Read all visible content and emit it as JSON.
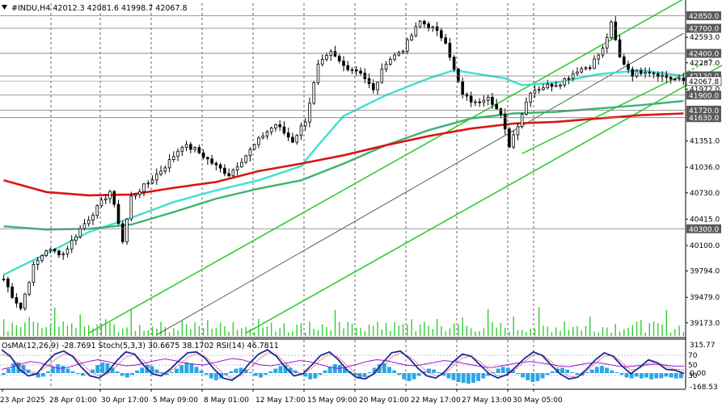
{
  "header": {
    "symbol_line": "#INDU,H4  42012.3 42081.6 41998.7 42067.8",
    "indicators_line": "OsMA(12,26,9) -28.7691  Stoch(5,3,3) 30.6675 38.1702  RSI(14) 46.7811"
  },
  "colors": {
    "background": "#ffffff",
    "grid": "#000000",
    "candles": "#000000",
    "volume": "#32cd32",
    "ema_fast": "#40e0d0",
    "ema_mid": "#3cb371",
    "ema_slow": "#dc1414",
    "channel": "#32cd32",
    "level_box": "#5a5a5a",
    "osma": "#2aa7e6",
    "stoch": "#1a2a9c",
    "rsi": "#9400d3"
  },
  "chart_data": {
    "type": "candlestick",
    "timeframe": "H4",
    "symbol": "#INDU",
    "last_price": "42067.8",
    "ylim": [
      39017,
      43000
    ],
    "y_ticks": [
      "42593.0",
      "42287.0",
      "41972.0",
      "41351.0",
      "41036.0",
      "40730.0",
      "40415.0",
      "40100.0",
      "39794.0",
      "39479.0",
      "39173.0"
    ],
    "x_labels": [
      "23 Apr 2025",
      "28 Apr 01:00",
      "30 Apr 17:00",
      "5 May 09:00",
      "8 May 01:00",
      "12 May 17:00",
      "15 May 09:00",
      "20 May 01:00",
      "22 May 17:00",
      "27 May 13:00",
      "30 May 05:00"
    ],
    "levels": [
      "42850.0",
      "42700.0",
      "42400.0",
      "42130.0",
      "41900.0",
      "41720.0",
      "41630.0",
      "40300.0"
    ],
    "last_price_label": "42067.8",
    "anchors": [
      {
        "i": 0,
        "c": 39700
      },
      {
        "i": 2,
        "c": 39500
      },
      {
        "i": 4,
        "c": 39350
      },
      {
        "i": 7,
        "c": 39850
      },
      {
        "i": 10,
        "c": 40050
      },
      {
        "i": 14,
        "c": 40000
      },
      {
        "i": 18,
        "c": 40300
      },
      {
        "i": 22,
        "c": 40550
      },
      {
        "i": 25,
        "c": 40750
      },
      {
        "i": 27,
        "c": 40380
      },
      {
        "i": 28,
        "c": 40150
      },
      {
        "i": 30,
        "c": 40680
      },
      {
        "i": 34,
        "c": 40850
      },
      {
        "i": 38,
        "c": 41050
      },
      {
        "i": 42,
        "c": 41300
      },
      {
        "i": 45,
        "c": 41250
      },
      {
        "i": 50,
        "c": 41050
      },
      {
        "i": 53,
        "c": 40950
      },
      {
        "i": 57,
        "c": 41180
      },
      {
        "i": 61,
        "c": 41420
      },
      {
        "i": 64,
        "c": 41550
      },
      {
        "i": 68,
        "c": 41350
      },
      {
        "i": 71,
        "c": 41600
      },
      {
        "i": 74,
        "c": 42250
      },
      {
        "i": 77,
        "c": 42400
      },
      {
        "i": 80,
        "c": 42250
      },
      {
        "i": 84,
        "c": 42180
      },
      {
        "i": 87,
        "c": 41950
      },
      {
        "i": 90,
        "c": 42300
      },
      {
        "i": 94,
        "c": 42450
      },
      {
        "i": 98,
        "c": 42780
      },
      {
        "i": 101,
        "c": 42700
      },
      {
        "i": 104,
        "c": 42550
      },
      {
        "i": 106,
        "c": 42200
      },
      {
        "i": 108,
        "c": 41900
      },
      {
        "i": 111,
        "c": 41800
      },
      {
        "i": 114,
        "c": 41900
      },
      {
        "i": 117,
        "c": 41650
      },
      {
        "i": 119,
        "c": 41300
      },
      {
        "i": 121,
        "c": 41550
      },
      {
        "i": 124,
        "c": 41950
      },
      {
        "i": 127,
        "c": 42000
      },
      {
        "i": 131,
        "c": 42050
      },
      {
        "i": 135,
        "c": 42200
      },
      {
        "i": 138,
        "c": 42250
      },
      {
        "i": 141,
        "c": 42450
      },
      {
        "i": 143,
        "c": 42750
      },
      {
        "i": 145,
        "c": 42350
      },
      {
        "i": 148,
        "c": 42150
      },
      {
        "i": 151,
        "c": 42200
      },
      {
        "i": 154,
        "c": 42150
      },
      {
        "i": 157,
        "c": 42100
      },
      {
        "i": 160,
        "c": 42067.8
      }
    ],
    "ma_slow": [
      [
        0,
        40880
      ],
      [
        10,
        40740
      ],
      [
        20,
        40700
      ],
      [
        30,
        40710
      ],
      [
        40,
        40790
      ],
      [
        50,
        40860
      ],
      [
        60,
        40990
      ],
      [
        70,
        41080
      ],
      [
        80,
        41180
      ],
      [
        90,
        41300
      ],
      [
        100,
        41410
      ],
      [
        110,
        41500
      ],
      [
        120,
        41560
      ],
      [
        130,
        41580
      ],
      [
        140,
        41620
      ],
      [
        150,
        41660
      ],
      [
        160,
        41680
      ]
    ],
    "ma_mid": [
      [
        0,
        40330
      ],
      [
        10,
        40290
      ],
      [
        20,
        40300
      ],
      [
        30,
        40350
      ],
      [
        40,
        40500
      ],
      [
        50,
        40660
      ],
      [
        60,
        40780
      ],
      [
        70,
        40880
      ],
      [
        80,
        41080
      ],
      [
        90,
        41300
      ],
      [
        100,
        41480
      ],
      [
        110,
        41620
      ],
      [
        120,
        41680
      ],
      [
        130,
        41700
      ],
      [
        140,
        41740
      ],
      [
        150,
        41780
      ],
      [
        160,
        41830
      ]
    ],
    "ma_fast": [
      [
        0,
        39750
      ],
      [
        10,
        40000
      ],
      [
        20,
        40260
      ],
      [
        30,
        40430
      ],
      [
        40,
        40620
      ],
      [
        50,
        40760
      ],
      [
        60,
        40880
      ],
      [
        70,
        41050
      ],
      [
        74,
        41300
      ],
      [
        80,
        41650
      ],
      [
        90,
        41900
      ],
      [
        100,
        42100
      ],
      [
        106,
        42200
      ],
      [
        112,
        42150
      ],
      [
        118,
        42100
      ],
      [
        122,
        42020
      ],
      [
        130,
        42050
      ],
      [
        140,
        42150
      ],
      [
        150,
        42200
      ],
      [
        160,
        42130
      ]
    ],
    "channels": [
      {
        "from": [
          20,
          39050
        ],
        "to": [
          160,
          43050
        ],
        "dashed": false
      },
      {
        "from": [
          57,
          39050
        ],
        "to": [
          195,
          43000
        ],
        "dashed": false
      },
      {
        "from": [
          122,
          41200
        ],
        "to": [
          160,
          42150
        ],
        "dashed": false
      },
      {
        "from": [
          160,
          42150
        ],
        "to": [
          185,
          42850
        ],
        "dashed": true
      },
      {
        "from": [
          36,
          39030
        ],
        "to": [
          160,
          42640
        ],
        "dashed": false
      }
    ],
    "osma": [
      -10,
      25,
      55,
      60,
      45,
      20,
      -10,
      -25,
      -20,
      10,
      35,
      50,
      40,
      25,
      10,
      -5,
      -15,
      -5,
      20,
      45,
      60,
      55,
      30,
      10,
      -15,
      -25,
      -10,
      15,
      30,
      45,
      38,
      20,
      5,
      -10,
      5,
      25,
      45,
      60,
      55,
      35,
      15,
      -10,
      -30,
      -40,
      -30,
      -10,
      10,
      25,
      30,
      20,
      5,
      -15,
      -25,
      -10,
      10,
      25,
      40,
      45,
      30,
      15,
      0,
      -20,
      -35,
      -30,
      -10,
      15,
      35,
      50,
      45,
      30,
      10,
      -15,
      -30,
      -20,
      5,
      30,
      50,
      55,
      35,
      15,
      -10,
      -35,
      -45,
      -35,
      -15,
      10,
      25,
      20,
      5,
      -15,
      -30,
      -40,
      -50,
      -55,
      -60,
      -55,
      -45,
      -30,
      -15,
      5,
      25,
      35,
      30,
      15,
      -5,
      -25,
      -40,
      -50,
      -45,
      -30,
      -10,
      10,
      25,
      30,
      20,
      5,
      -10,
      -15,
      5,
      20,
      35,
      40,
      30,
      15,
      5,
      -10,
      -25,
      -30,
      -20,
      -30,
      -25,
      -35,
      -30,
      -28.8,
      -20,
      -25,
      -30,
      -28.8
    ],
    "stoch_main": [
      85,
      70,
      40,
      25,
      30,
      55,
      75,
      82,
      70,
      45,
      25,
      20,
      35,
      60,
      80,
      75,
      50,
      30,
      25,
      40,
      60,
      78,
      80,
      65,
      40,
      20,
      15,
      30,
      55,
      75,
      85,
      70,
      45,
      25,
      30,
      50,
      72,
      80,
      62,
      38,
      22,
      18,
      30,
      55,
      78,
      82,
      65,
      42,
      25,
      20,
      35,
      58,
      75,
      70,
      50,
      30,
      20,
      28,
      45,
      65,
      80,
      72,
      50,
      30,
      18,
      22,
      40,
      62,
      78,
      70,
      48,
      30,
      45,
      62,
      55,
      40,
      38,
      30.7
    ],
    "stoch_signal": [
      75,
      68,
      50,
      35,
      33,
      45,
      62,
      75,
      72,
      55,
      35,
      25,
      30,
      48,
      68,
      74,
      60,
      40,
      30,
      35,
      50,
      68,
      76,
      70,
      50,
      30,
      20,
      25,
      42,
      62,
      78,
      74,
      55,
      35,
      30,
      42,
      62,
      75,
      68,
      48,
      30,
      22,
      28,
      45,
      68,
      78,
      70,
      52,
      35,
      25,
      30,
      48,
      66,
      70,
      58,
      38,
      25,
      26,
      40,
      58,
      74,
      74,
      58,
      38,
      24,
      22,
      35,
      54,
      70,
      72,
      56,
      38,
      42,
      55,
      56,
      46,
      40,
      38.2
    ],
    "rsi": [
      40,
      45,
      52,
      58,
      55,
      48,
      42,
      45,
      52,
      58,
      62,
      58,
      52,
      48,
      50,
      55,
      60,
      64,
      60,
      55,
      52,
      50,
      55,
      60,
      65,
      62,
      56,
      50,
      48,
      52,
      56,
      60,
      58,
      52,
      46,
      42,
      46,
      52,
      58,
      62,
      60,
      55,
      50,
      48,
      52,
      56,
      60,
      58,
      54,
      50,
      46,
      44,
      48,
      52,
      56,
      58,
      55,
      52,
      48,
      46,
      50,
      54,
      56,
      52,
      48,
      46,
      48,
      50,
      52,
      50,
      47,
      46.8
    ],
    "osc_levels": [
      "70",
      "50",
      "30"
    ],
    "osc_ticks": [
      "315.77",
      "0.00",
      "-168.53"
    ]
  }
}
